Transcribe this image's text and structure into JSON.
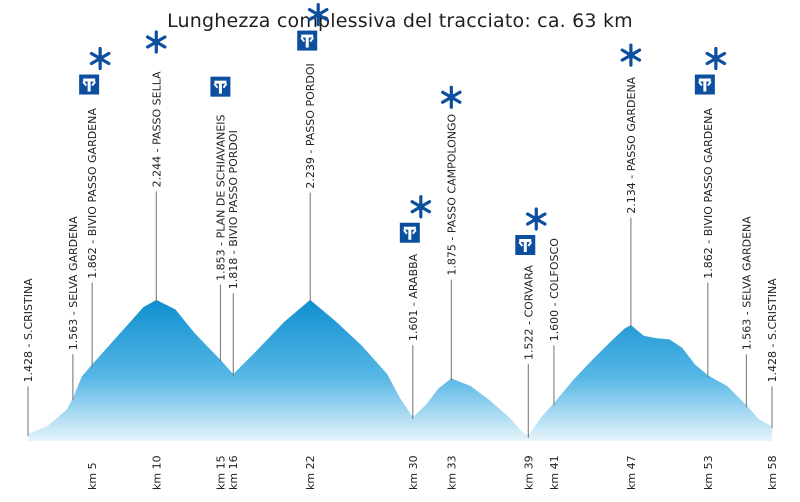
{
  "title": "Lunghezza complessiva del tracciato: ca. 63 km",
  "colors": {
    "fill_top": "#0f8fcf",
    "fill_bottom": "#e6f4fb",
    "line": "#6f6f6f",
    "icon_lift": "#0b4f9e",
    "icon_star": "#0b4f9e"
  },
  "chart_data": {
    "type": "area",
    "title": "Lunghezza complessiva del tracciato: ca. 63 km",
    "xlabel": "",
    "ylabel": "",
    "xlim": [
      0,
      58
    ],
    "ylim": [
      1200,
      2300
    ],
    "grid": false,
    "points": [
      {
        "km": 0,
        "alt": 1428,
        "name": "S.CRISTINA",
        "label": "1.428 - S.CRISTINA",
        "tick": ""
      },
      {
        "km": 3.5,
        "alt": 1563,
        "name": "SELVA GARDENA",
        "label": "1.563 - SELVA GARDENA",
        "tick": ""
      },
      {
        "km": 5,
        "alt": 1862,
        "name": "BIVIO PASSO GARDENA",
        "label": "1.862 - BIVIO PASSO GARDENA",
        "tick": "km 5"
      },
      {
        "km": 10,
        "alt": 2244,
        "name": "PASSO SELLA",
        "label": "2.244 - PASSO SELLA",
        "tick": "km 10"
      },
      {
        "km": 15,
        "alt": 1853,
        "name": "PLAN DE SCHIAVANEIS",
        "label": "1.853 - PLAN DE SCHIAVANEIS",
        "tick": "km 15"
      },
      {
        "km": 16,
        "alt": 1818,
        "name": "BIVIO PASSO PORDOI",
        "label": "1.818 - BIVIO PASSO PORDOI",
        "tick": "km 16"
      },
      {
        "km": 22,
        "alt": 2239,
        "name": "PASSO PORDOI",
        "label": "2.239 - PASSO PORDOI",
        "tick": "km 22"
      },
      {
        "km": 30,
        "alt": 1601,
        "name": "ARABBA",
        "label": "1.601 - ARABBA",
        "tick": "km 30"
      },
      {
        "km": 33,
        "alt": 1875,
        "name": "PASSO CAMPOLONGO",
        "label": "1.875 - PASSO CAMPOLONGO",
        "tick": "km 33"
      },
      {
        "km": 39,
        "alt": 1522,
        "name": "CORVARA",
        "label": "1.522 - CORVARA",
        "tick": "km 39"
      },
      {
        "km": 41,
        "alt": 1600,
        "name": "COLFOSCO",
        "label": "1.600 - COLFOSCO",
        "tick": "km 41"
      },
      {
        "km": 47,
        "alt": 2134,
        "name": "PASSO GARDENA",
        "label": "2.134 - PASSO GARDENA",
        "tick": "km 47"
      },
      {
        "km": 53,
        "alt": 1862,
        "name": "BIVIO PASSO GARDENA",
        "label": "1.862 - BIVIO PASSO GARDENA",
        "tick": "km 53"
      },
      {
        "km": 56,
        "alt": 1563,
        "name": "SELVA GARDENA",
        "label": "1.563 - SELVA GARDENA",
        "tick": ""
      },
      {
        "km": 58,
        "alt": 1428,
        "name": "S.CRISTINA",
        "label": "1.428 - S.CRISTINA",
        "tick": "km 58"
      }
    ],
    "profile": [
      [
        0,
        1230
      ],
      [
        1.5,
        1262
      ],
      [
        3,
        1330
      ],
      [
        3.5,
        1380
      ],
      [
        4.2,
        1470
      ],
      [
        5,
        1520
      ],
      [
        7,
        1640
      ],
      [
        9,
        1760
      ],
      [
        10,
        1790
      ],
      [
        11.5,
        1750
      ],
      [
        13,
        1650
      ],
      [
        14,
        1595
      ],
      [
        15,
        1540
      ],
      [
        15.5,
        1510
      ],
      [
        16,
        1480
      ],
      [
        17.5,
        1560
      ],
      [
        20,
        1700
      ],
      [
        22,
        1790
      ],
      [
        24,
        1700
      ],
      [
        26,
        1600
      ],
      [
        28,
        1480
      ],
      [
        29,
        1380
      ],
      [
        30,
        1300
      ],
      [
        31,
        1350
      ],
      [
        32,
        1420
      ],
      [
        33,
        1462
      ],
      [
        34.5,
        1430
      ],
      [
        36,
        1370
      ],
      [
        37.5,
        1300
      ],
      [
        38.5,
        1240
      ],
      [
        39,
        1222
      ],
      [
        40,
        1300
      ],
      [
        41,
        1358
      ],
      [
        42.5,
        1455
      ],
      [
        44,
        1540
      ],
      [
        45.5,
        1620
      ],
      [
        46.5,
        1670
      ],
      [
        47,
        1685
      ],
      [
        48,
        1640
      ],
      [
        49,
        1630
      ],
      [
        50,
        1625
      ],
      [
        51,
        1590
      ],
      [
        52,
        1520
      ],
      [
        53,
        1475
      ],
      [
        54.5,
        1430
      ],
      [
        56,
        1350
      ],
      [
        57,
        1290
      ],
      [
        58,
        1262
      ]
    ],
    "icons": [
      {
        "km": 5,
        "lift": true,
        "star": true
      },
      {
        "km": 10,
        "lift": false,
        "star": true
      },
      {
        "km": 15,
        "lift": true,
        "star": false
      },
      {
        "km": 22,
        "lift": true,
        "star": true
      },
      {
        "km": 30,
        "lift": true,
        "star": true
      },
      {
        "km": 33,
        "lift": false,
        "star": true
      },
      {
        "km": 39,
        "lift": true,
        "star": true
      },
      {
        "km": 47,
        "lift": false,
        "star": true
      },
      {
        "km": 53,
        "lift": true,
        "star": true
      }
    ]
  }
}
